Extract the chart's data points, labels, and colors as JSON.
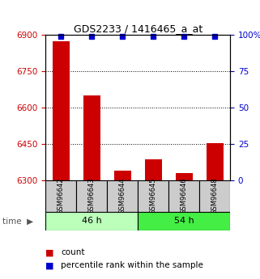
{
  "title": "GDS2233 / 1416465_a_at",
  "samples": [
    "GSM96642",
    "GSM96643",
    "GSM96644",
    "GSM96645",
    "GSM96646",
    "GSM96648"
  ],
  "counts": [
    6872,
    6650,
    6340,
    6385,
    6330,
    6452
  ],
  "percentiles": [
    99,
    99,
    99,
    99,
    99,
    99
  ],
  "groups": [
    {
      "label": "46 h",
      "color_light": "#bbffbb",
      "color_dark": "#44ee44",
      "start": 0,
      "end": 3
    },
    {
      "label": "54 h",
      "color_light": "#44ee44",
      "color_dark": "#44ee44",
      "start": 3,
      "end": 6
    }
  ],
  "ylim_left": [
    6300,
    6900
  ],
  "yticks_left": [
    6300,
    6450,
    6600,
    6750,
    6900
  ],
  "yticks_right": [
    0,
    25,
    50,
    75,
    100
  ],
  "bar_color": "#cc0000",
  "dot_color": "#0000cc",
  "bar_width": 0.55,
  "sample_box_color": "#cccccc",
  "tick_color_left": "#cc0000",
  "tick_color_right": "#0000cc",
  "legend_count_label": "count",
  "legend_pct_label": "percentile rank within the sample"
}
